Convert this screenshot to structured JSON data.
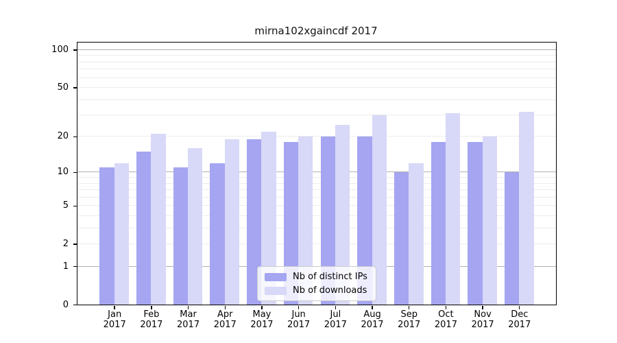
{
  "title": "mirna102xgaincdf 2017",
  "colors": {
    "distinct_ips": "#a5a5f2",
    "downloads": "#d8d8f8",
    "grid_minor": "#ececec",
    "grid_decade": "#b0b0b0",
    "axis": "#000000"
  },
  "legend": {
    "items": [
      {
        "label": "Nb of distinct IPs",
        "color": "#a5a5f2"
      },
      {
        "label": "Nb of downloads",
        "color": "#d8d8f8"
      }
    ]
  },
  "y_axis": {
    "tick_labels": [
      100,
      50,
      20,
      10,
      5,
      2,
      1,
      0
    ]
  },
  "x_axis": {
    "months": [
      "Jan",
      "Feb",
      "Mar",
      "Apr",
      "May",
      "Jun",
      "Jul",
      "Aug",
      "Sep",
      "Oct",
      "Nov",
      "Dec"
    ],
    "year": "2017"
  },
  "chart_data": {
    "type": "bar",
    "title": "mirna102xgaincdf 2017",
    "categories": [
      "Jan 2017",
      "Feb 2017",
      "Mar 2017",
      "Apr 2017",
      "May 2017",
      "Jun 2017",
      "Jul 2017",
      "Aug 2017",
      "Sep 2017",
      "Oct 2017",
      "Nov 2017",
      "Dec 2017"
    ],
    "series": [
      {
        "name": "Nb of distinct IPs",
        "color": "#a5a5f2",
        "values": [
          11,
          15,
          11,
          12,
          19,
          18,
          20,
          20,
          10,
          18,
          18,
          10
        ]
      },
      {
        "name": "Nb of downloads",
        "color": "#d8d8f8",
        "values": [
          12,
          21,
          16,
          19,
          22,
          20,
          25,
          30,
          12,
          31,
          20,
          32
        ]
      }
    ],
    "xlabel": "",
    "ylabel": "",
    "yscale": "log1p",
    "yticks": [
      0,
      1,
      2,
      5,
      10,
      20,
      50,
      100
    ],
    "ylim": [
      0,
      114
    ],
    "grid": "horizontal",
    "gridlines": {
      "decade": [
        1,
        10,
        100
      ],
      "minor": [
        2,
        3,
        4,
        5,
        6,
        7,
        8,
        9,
        20,
        30,
        40,
        50,
        60,
        70,
        80,
        90
      ]
    },
    "legend_position": "lower center"
  }
}
